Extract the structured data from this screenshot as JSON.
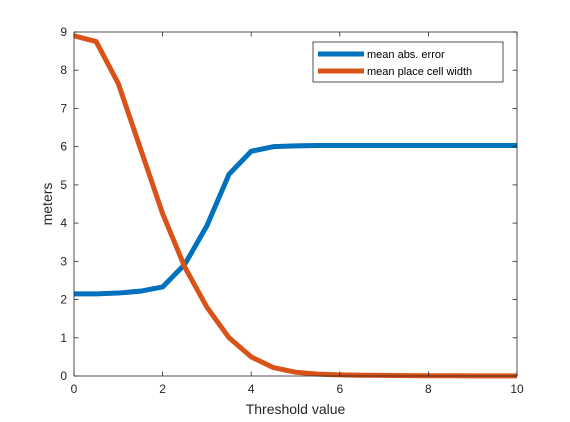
{
  "chart_data": {
    "type": "line",
    "title": "",
    "xlabel": "Threshold value",
    "ylabel": "meters",
    "xlim": [
      0,
      10
    ],
    "ylim": [
      0,
      9
    ],
    "xticks": [
      "0",
      "2",
      "4",
      "6",
      "8",
      "10"
    ],
    "yticks": [
      "0",
      "1",
      "2",
      "3",
      "4",
      "5",
      "6",
      "7",
      "8",
      "9"
    ],
    "grid": false,
    "legend_position": "top-right",
    "x": [
      0,
      0.5,
      1,
      1.5,
      2,
      2.5,
      3,
      3.5,
      4,
      4.5,
      5,
      5.5,
      6,
      6.5,
      7,
      7.5,
      8,
      8.5,
      9,
      9.5,
      10
    ],
    "series": [
      {
        "name": "mean abs. error",
        "color": "#0072BD",
        "values": [
          2.15,
          2.15,
          2.17,
          2.22,
          2.33,
          2.92,
          3.93,
          5.28,
          5.88,
          6.0,
          6.02,
          6.03,
          6.03,
          6.03,
          6.03,
          6.03,
          6.03,
          6.03,
          6.03,
          6.03,
          6.03
        ]
      },
      {
        "name": "mean place cell width",
        "color": "#D95319",
        "values": [
          8.9,
          8.75,
          7.65,
          5.95,
          4.25,
          2.85,
          1.8,
          1.0,
          0.5,
          0.22,
          0.1,
          0.05,
          0.03,
          0.02,
          0.015,
          0.01,
          0.008,
          0.005,
          0.004,
          0.003,
          0.003
        ]
      }
    ]
  }
}
